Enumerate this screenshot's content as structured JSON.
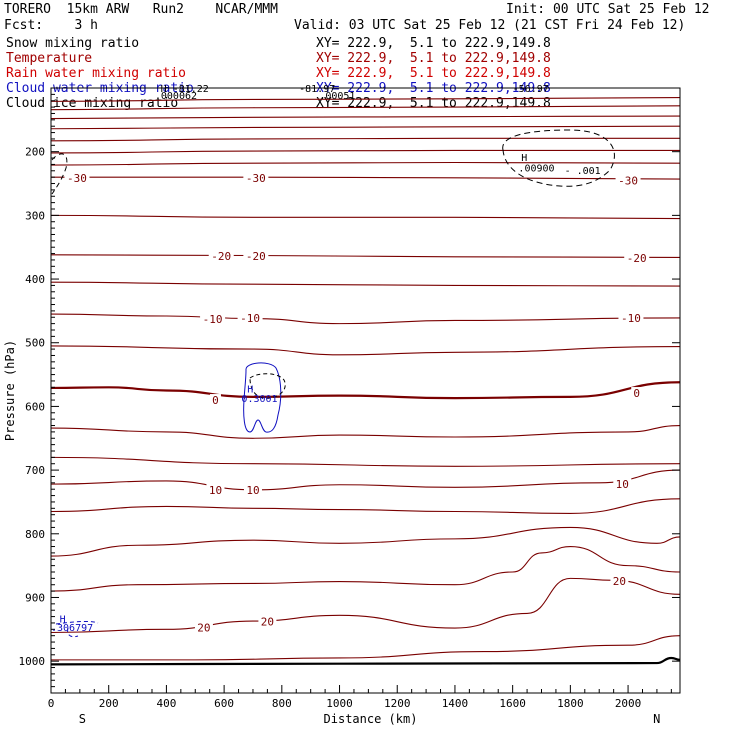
{
  "header": {
    "title_left": "TORERO  15km ARW   Run2    NCAR/MMM",
    "init": "Init: 00 UTC Sat 25 Feb 12",
    "fcst": "Fcst:    3 h",
    "valid": "Valid: 03 UTC Sat 25 Feb 12 (21 CST Fri 24 Feb 12)"
  },
  "legend": [
    {
      "label": "Snow mixing ratio",
      "xy": "XY= 222.9,  5.1 to 222.9,149.8",
      "color": "#000000"
    },
    {
      "label": "Temperature",
      "xy": "XY= 222.9,  5.1 to 222.9,149.8",
      "color": "#a00000"
    },
    {
      "label": "Rain water mixing ratio",
      "xy": "XY= 222.9,  5.1 to 222.9,149.8",
      "color": "#d00000"
    },
    {
      "label": "Cloud water mixing ratio",
      "xy": "XY= 222.9,  5.1 to 222.9,149.8",
      "color": "#1010c0"
    },
    {
      "label": "Cloud ice mixing ratio",
      "xy": "XY= 222.9,  5.1 to 222.9,149.8",
      "color": "#000000"
    }
  ],
  "chart_data": {
    "type": "line",
    "title": "Vertical cross section",
    "xlabel": "Distance (km)",
    "ylabel": "Pressure (hPa)",
    "xlim": [
      0,
      2180
    ],
    "ylim": [
      1050,
      100
    ],
    "x_ticks": [
      0,
      200,
      400,
      600,
      800,
      1000,
      1200,
      1400,
      1600,
      1800,
      2000
    ],
    "y_ticks": [
      200,
      300,
      400,
      500,
      600,
      700,
      800,
      900,
      1000
    ],
    "end_labels": {
      "left": "S",
      "right": "N"
    },
    "temperature_labels": [
      {
        "text": "-30",
        "x": 90,
        "p": 241
      },
      {
        "text": "-30",
        "x": 710,
        "p": 241
      },
      {
        "text": "-30",
        "x": 2000,
        "p": 245
      },
      {
        "text": "-20",
        "x": 590,
        "p": 364
      },
      {
        "text": "-20",
        "x": 710,
        "p": 364
      },
      {
        "text": "-20",
        "x": 2030,
        "p": 367
      },
      {
        "text": "-10",
        "x": 560,
        "p": 463
      },
      {
        "text": "-10",
        "x": 690,
        "p": 461
      },
      {
        "text": "-10",
        "x": 2010,
        "p": 461
      },
      {
        "text": "0",
        "x": 570,
        "p": 590
      },
      {
        "text": "0",
        "x": 2030,
        "p": 579
      },
      {
        "text": "10",
        "x": 570,
        "p": 731
      },
      {
        "text": "10",
        "x": 700,
        "p": 731
      },
      {
        "text": "10",
        "x": 1980,
        "p": 722
      },
      {
        "text": "20",
        "x": 530,
        "p": 947
      },
      {
        "text": "20",
        "x": 750,
        "p": 938
      },
      {
        "text": "20",
        "x": 1970,
        "p": 874
      }
    ],
    "temperature_isotherms": [
      {
        "value": "-60",
        "points": [
          [
            0,
            121
          ],
          [
            700,
            118
          ],
          [
            1400,
            117
          ],
          [
            2180,
            115
          ]
        ]
      },
      {
        "value": "-55",
        "points": [
          [
            0,
            134
          ],
          [
            700,
            131
          ],
          [
            1400,
            130
          ],
          [
            2180,
            128
          ]
        ]
      },
      {
        "value": "-50",
        "points": [
          [
            0,
            148
          ],
          [
            700,
            146
          ],
          [
            1400,
            145
          ],
          [
            2180,
            144
          ]
        ]
      },
      {
        "value": "-45",
        "points": [
          [
            0,
            164
          ],
          [
            700,
            162
          ],
          [
            1400,
            161
          ],
          [
            2180,
            160
          ]
        ]
      },
      {
        "value": "-40",
        "points": [
          [
            0,
            183
          ],
          [
            700,
            180
          ],
          [
            1400,
            179
          ],
          [
            2180,
            179
          ]
        ]
      },
      {
        "value": "-38",
        "points": [
          [
            0,
            202
          ],
          [
            700,
            199
          ],
          [
            1400,
            198
          ],
          [
            2180,
            198
          ]
        ]
      },
      {
        "value": "-35",
        "points": [
          [
            0,
            221
          ],
          [
            700,
            218
          ],
          [
            1400,
            217
          ],
          [
            2180,
            218
          ]
        ]
      },
      {
        "value": "-30",
        "points": [
          [
            0,
            240
          ],
          [
            700,
            240
          ],
          [
            1400,
            241
          ],
          [
            2180,
            243
          ]
        ]
      },
      {
        "value": "-25",
        "points": [
          [
            0,
            300
          ],
          [
            700,
            303
          ],
          [
            1400,
            303
          ],
          [
            2180,
            305
          ]
        ]
      },
      {
        "value": "-20",
        "points": [
          [
            0,
            362
          ],
          [
            700,
            363
          ],
          [
            1400,
            365
          ],
          [
            2180,
            366
          ]
        ]
      },
      {
        "value": "-15",
        "points": [
          [
            0,
            405
          ],
          [
            700,
            408
          ],
          [
            1400,
            410
          ],
          [
            2180,
            411
          ]
        ]
      },
      {
        "value": "-10",
        "points": [
          [
            0,
            455
          ],
          [
            400,
            458
          ],
          [
            700,
            462
          ],
          [
            1000,
            470
          ],
          [
            1400,
            465
          ],
          [
            2180,
            461
          ]
        ]
      },
      {
        "value": "-5",
        "points": [
          [
            0,
            505
          ],
          [
            700,
            510
          ],
          [
            1000,
            519
          ],
          [
            1400,
            515
          ],
          [
            2180,
            506
          ]
        ]
      },
      {
        "value": "0",
        "points": [
          [
            0,
            571
          ],
          [
            200,
            570
          ],
          [
            400,
            575
          ],
          [
            700,
            585
          ],
          [
            1000,
            583
          ],
          [
            1400,
            587
          ],
          [
            1800,
            585
          ],
          [
            2180,
            562
          ]
        ]
      },
      {
        "value": "5",
        "points": [
          [
            0,
            634
          ],
          [
            400,
            640
          ],
          [
            700,
            650
          ],
          [
            1000,
            645
          ],
          [
            1400,
            648
          ],
          [
            2000,
            640
          ],
          [
            2180,
            630
          ]
        ]
      },
      {
        "value": "8",
        "points": [
          [
            0,
            680
          ],
          [
            700,
            690
          ],
          [
            1400,
            694
          ],
          [
            2180,
            690
          ]
        ]
      },
      {
        "value": "10",
        "points": [
          [
            0,
            722
          ],
          [
            400,
            717
          ],
          [
            700,
            731
          ],
          [
            1000,
            723
          ],
          [
            1400,
            727
          ],
          [
            1900,
            720
          ],
          [
            2180,
            700
          ]
        ]
      },
      {
        "value": "12",
        "points": [
          [
            0,
            765
          ],
          [
            400,
            757
          ],
          [
            700,
            760
          ],
          [
            1000,
            762
          ],
          [
            1400,
            765
          ],
          [
            1800,
            768
          ],
          [
            2180,
            745
          ]
        ]
      },
      {
        "value": "15",
        "points": [
          [
            0,
            835
          ],
          [
            300,
            818
          ],
          [
            700,
            810
          ],
          [
            1000,
            815
          ],
          [
            1400,
            808
          ],
          [
            1800,
            790
          ],
          [
            2100,
            815
          ],
          [
            2180,
            805
          ]
        ]
      },
      {
        "value": "17",
        "points": [
          [
            0,
            890
          ],
          [
            300,
            880
          ],
          [
            700,
            878
          ],
          [
            1000,
            875
          ],
          [
            1400,
            880
          ],
          [
            1600,
            860
          ],
          [
            1700,
            830
          ],
          [
            1800,
            820
          ],
          [
            2000,
            850
          ],
          [
            2180,
            860
          ]
        ]
      },
      {
        "value": "20",
        "points": [
          [
            0,
            955
          ],
          [
            400,
            950
          ],
          [
            700,
            937
          ],
          [
            1000,
            928
          ],
          [
            1400,
            948
          ],
          [
            1650,
            925
          ],
          [
            1800,
            870
          ],
          [
            1950,
            873
          ],
          [
            2180,
            895
          ]
        ]
      },
      {
        "value": "22",
        "points": [
          [
            0,
            998
          ],
          [
            500,
            998
          ],
          [
            1000,
            995
          ],
          [
            1500,
            985
          ],
          [
            2000,
            975
          ],
          [
            2180,
            960
          ]
        ]
      }
    ],
    "ground_pressure": [
      [
        0,
        1005
      ],
      [
        1000,
        1004
      ],
      [
        2100,
        1003
      ],
      [
        2150,
        995
      ],
      [
        2180,
        998
      ]
    ],
    "extrema_labels": [
      {
        "text": "H",
        "x": 1630,
        "p": 215,
        "color": "#000000"
      },
      {
        "text": ".00900",
        "x": 1620,
        "p": 231,
        "color": "#000000"
      },
      {
        "text": "- .001",
        "x": 1780,
        "p": 235,
        "color": "#000000"
      },
      {
        "text": "H",
        "x": 680,
        "p": 578,
        "color": "#1010c0"
      },
      {
        "text": "0.3001",
        "x": 660,
        "p": 593,
        "color": "#1010c0"
      },
      {
        "text": "H",
        "x": 30,
        "p": 939,
        "color": "#1010c0"
      },
      {
        "text": ".306797",
        "x": 0,
        "p": 953,
        "color": "#1010c0"
      },
      {
        "text": "H  -81.22",
        "x": 380,
        "p": 106,
        "color": "#000000"
      },
      {
        "text": ".000062",
        "x": 360,
        "p": 117,
        "color": "#000000"
      },
      {
        "text": "-81.97",
        "x": 860,
        "p": 106,
        "color": "#000000"
      },
      {
        "text": ".00051",
        "x": 930,
        "p": 117,
        "color": "#000000"
      },
      {
        "text": "-56.97",
        "x": 1600,
        "p": 106,
        "color": "#000000"
      }
    ]
  }
}
